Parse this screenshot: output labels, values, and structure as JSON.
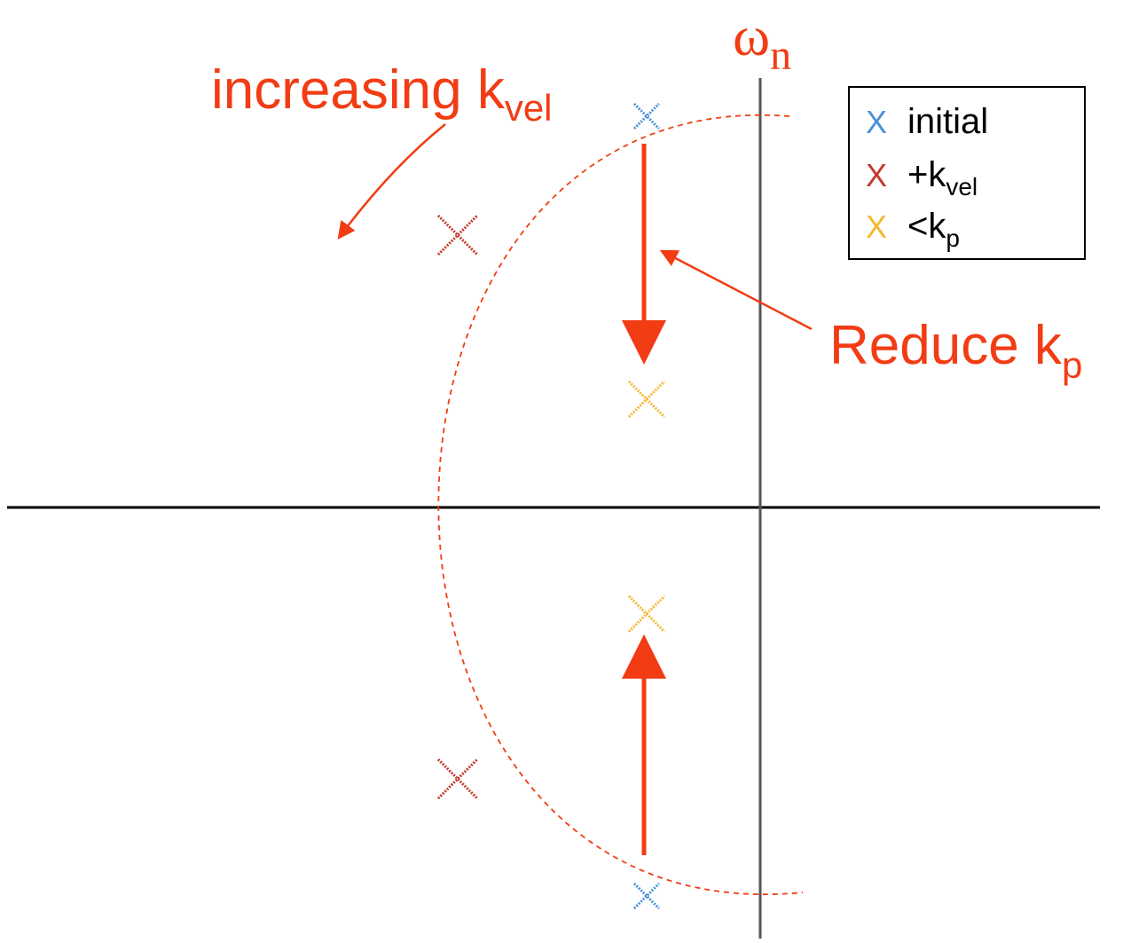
{
  "colors": {
    "annotation": "#f23c14",
    "axis": "#000000",
    "initial": "#4a90d9",
    "kvel": "#c0392b",
    "kp": "#f5b731"
  },
  "labels": {
    "omega_symbol": "ω",
    "omega_sub": "n",
    "increasing_main": "increasing k",
    "increasing_sub": "vel",
    "reduce_main": "Reduce k",
    "reduce_sub": "p"
  },
  "legend": {
    "items": [
      {
        "marker": "X",
        "label": "initial",
        "sub": "",
        "color_key": "initial"
      },
      {
        "marker": "X",
        "label": "+k",
        "sub": "vel",
        "color_key": "kvel"
      },
      {
        "marker": "X",
        "label": "<k",
        "sub": "p",
        "color_key": "kp"
      }
    ]
  },
  "poles": [
    {
      "set": "initial",
      "icon": "x-marker-icon"
    },
    {
      "set": "initial",
      "icon": "x-marker-icon"
    },
    {
      "set": "kvel",
      "icon": "x-marker-icon"
    },
    {
      "set": "kvel",
      "icon": "x-marker-icon"
    },
    {
      "set": "kp",
      "icon": "x-marker-icon"
    },
    {
      "set": "kp",
      "icon": "x-marker-icon"
    }
  ]
}
